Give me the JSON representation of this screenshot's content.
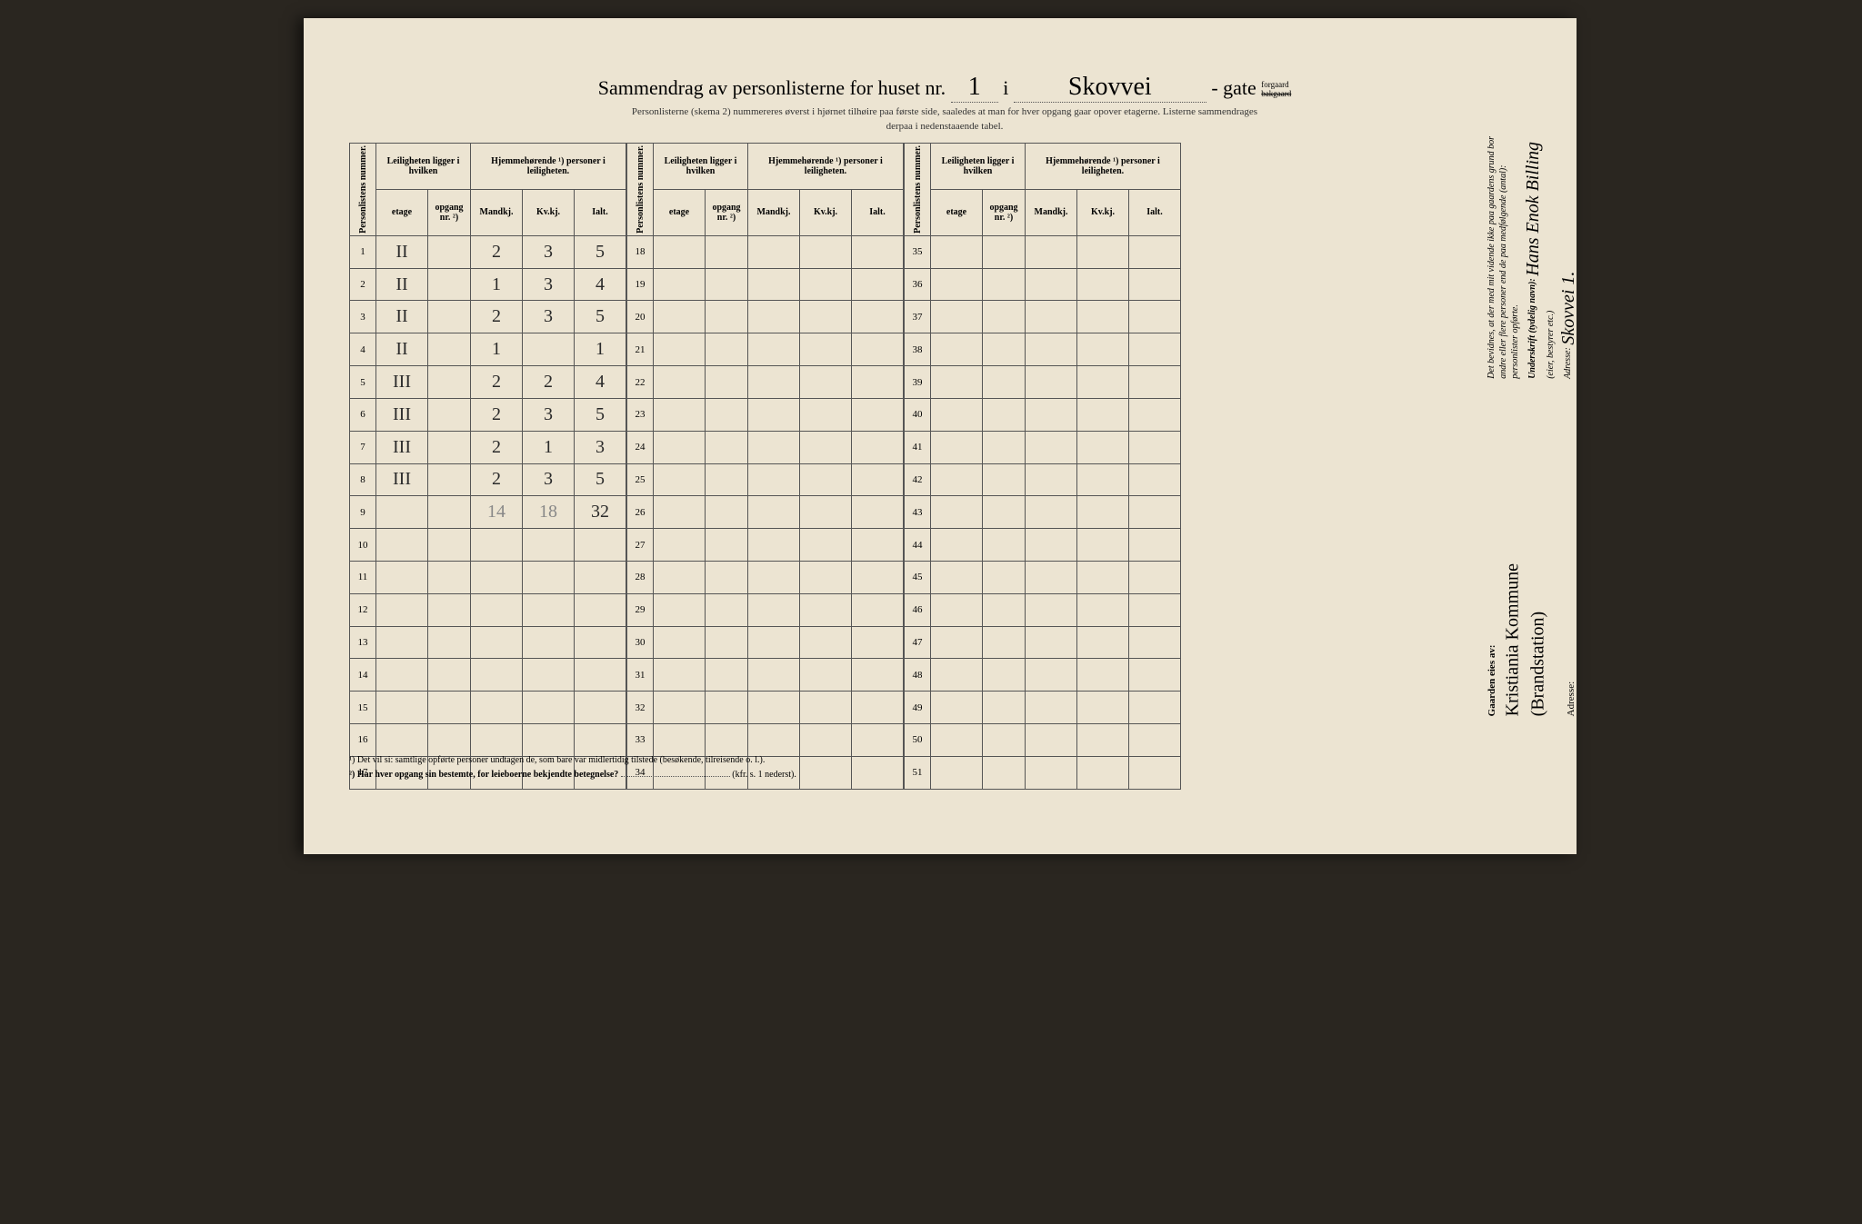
{
  "header": {
    "title_prefix": "Sammendrag av personlisterne for huset nr.",
    "house_nr": "1",
    "i_word": "i",
    "street_name": "Skovvei",
    "gate_word": "gate",
    "forgaard": "forgaard",
    "bakgaard": "bakgaard",
    "subtitle1": "Personlisterne (skema 2) nummereres øverst i hjørnet tilhøire paa første side, saaledes at man for hver opgang gaar opover etagerne.  Listerne sammendrages",
    "subtitle2": "derpaa i nedenstaaende tabel."
  },
  "columns": {
    "personlistens": "Personlistens\nnummer.",
    "leil_group": "Leiligheten\nligger i hvilken",
    "hjemme_group": "Hjemmehørende ¹)\npersoner i leiligheten.",
    "etage": "etage",
    "opgang": "opgang\nnr. ²)",
    "mandkj": "Mandkj.",
    "kvkj": "Kv.kj.",
    "ialt": "Ialt."
  },
  "rows_block1": [
    {
      "n": "1",
      "etage": "II",
      "opg": "",
      "m": "2",
      "k": "3",
      "t": "5"
    },
    {
      "n": "2",
      "etage": "II",
      "opg": "",
      "m": "1",
      "k": "3",
      "t": "4"
    },
    {
      "n": "3",
      "etage": "II",
      "opg": "",
      "m": "2",
      "k": "3",
      "t": "5"
    },
    {
      "n": "4",
      "etage": "II",
      "opg": "",
      "m": "1",
      "k": "",
      "t": "1"
    },
    {
      "n": "5",
      "etage": "III",
      "opg": "",
      "m": "2",
      "k": "2",
      "t": "4"
    },
    {
      "n": "6",
      "etage": "III",
      "opg": "",
      "m": "2",
      "k": "3",
      "t": "5"
    },
    {
      "n": "7",
      "etage": "III",
      "opg": "",
      "m": "2",
      "k": "1",
      "t": "3"
    },
    {
      "n": "8",
      "etage": "III",
      "opg": "",
      "m": "2",
      "k": "3",
      "t": "5"
    },
    {
      "n": "9",
      "etage": "",
      "opg": "",
      "m": "14",
      "k": "18",
      "t": "32",
      "pencil": true
    },
    {
      "n": "10"
    },
    {
      "n": "11"
    },
    {
      "n": "12"
    },
    {
      "n": "13"
    },
    {
      "n": "14"
    },
    {
      "n": "15"
    },
    {
      "n": "16"
    },
    {
      "n": "17"
    }
  ],
  "rows_block2_start": 18,
  "rows_block2_end": 34,
  "rows_block3_start": 35,
  "rows_block3_end": 51,
  "side": {
    "bevid1": "Det bevidnes, at der med mit vidende ikke paa gaardens grund bor",
    "bevid2": "andre eller flere personer end de paa medfølgende (antal):",
    "bevid3": "personlister opførte.",
    "under_label": "Underskrift (tydelig navn):",
    "under_sig": "Hans Enok Billing",
    "eier_note": "(eier, bestyrer etc.)",
    "adresse_label": "Adresse:",
    "adresse_val": "Skovvei 1."
  },
  "owner": {
    "label": "Gaarden eies av:",
    "value1": "Kristiania Kommune",
    "value2": "(Brandstation)",
    "adresse_label": "Adresse:"
  },
  "footnotes": {
    "f1": "¹)  Det vil si: samtlige opførte personer undtagen de, som bare var midlertidig tilstede (besøkende, tilreisende o. l.).",
    "f2_label": "²)  Har hver opgang sin bestemte, for leieboerne bekjendte betegnelse?",
    "f2_ref": "(kfr. s. 1 nederst)."
  },
  "style": {
    "paper_bg": "#ece4d2",
    "line_color": "#555555",
    "ink_color": "#2a2a2a",
    "pencil_color": "#888888",
    "title_fontsize": 22,
    "body_fontsize": 11
  }
}
